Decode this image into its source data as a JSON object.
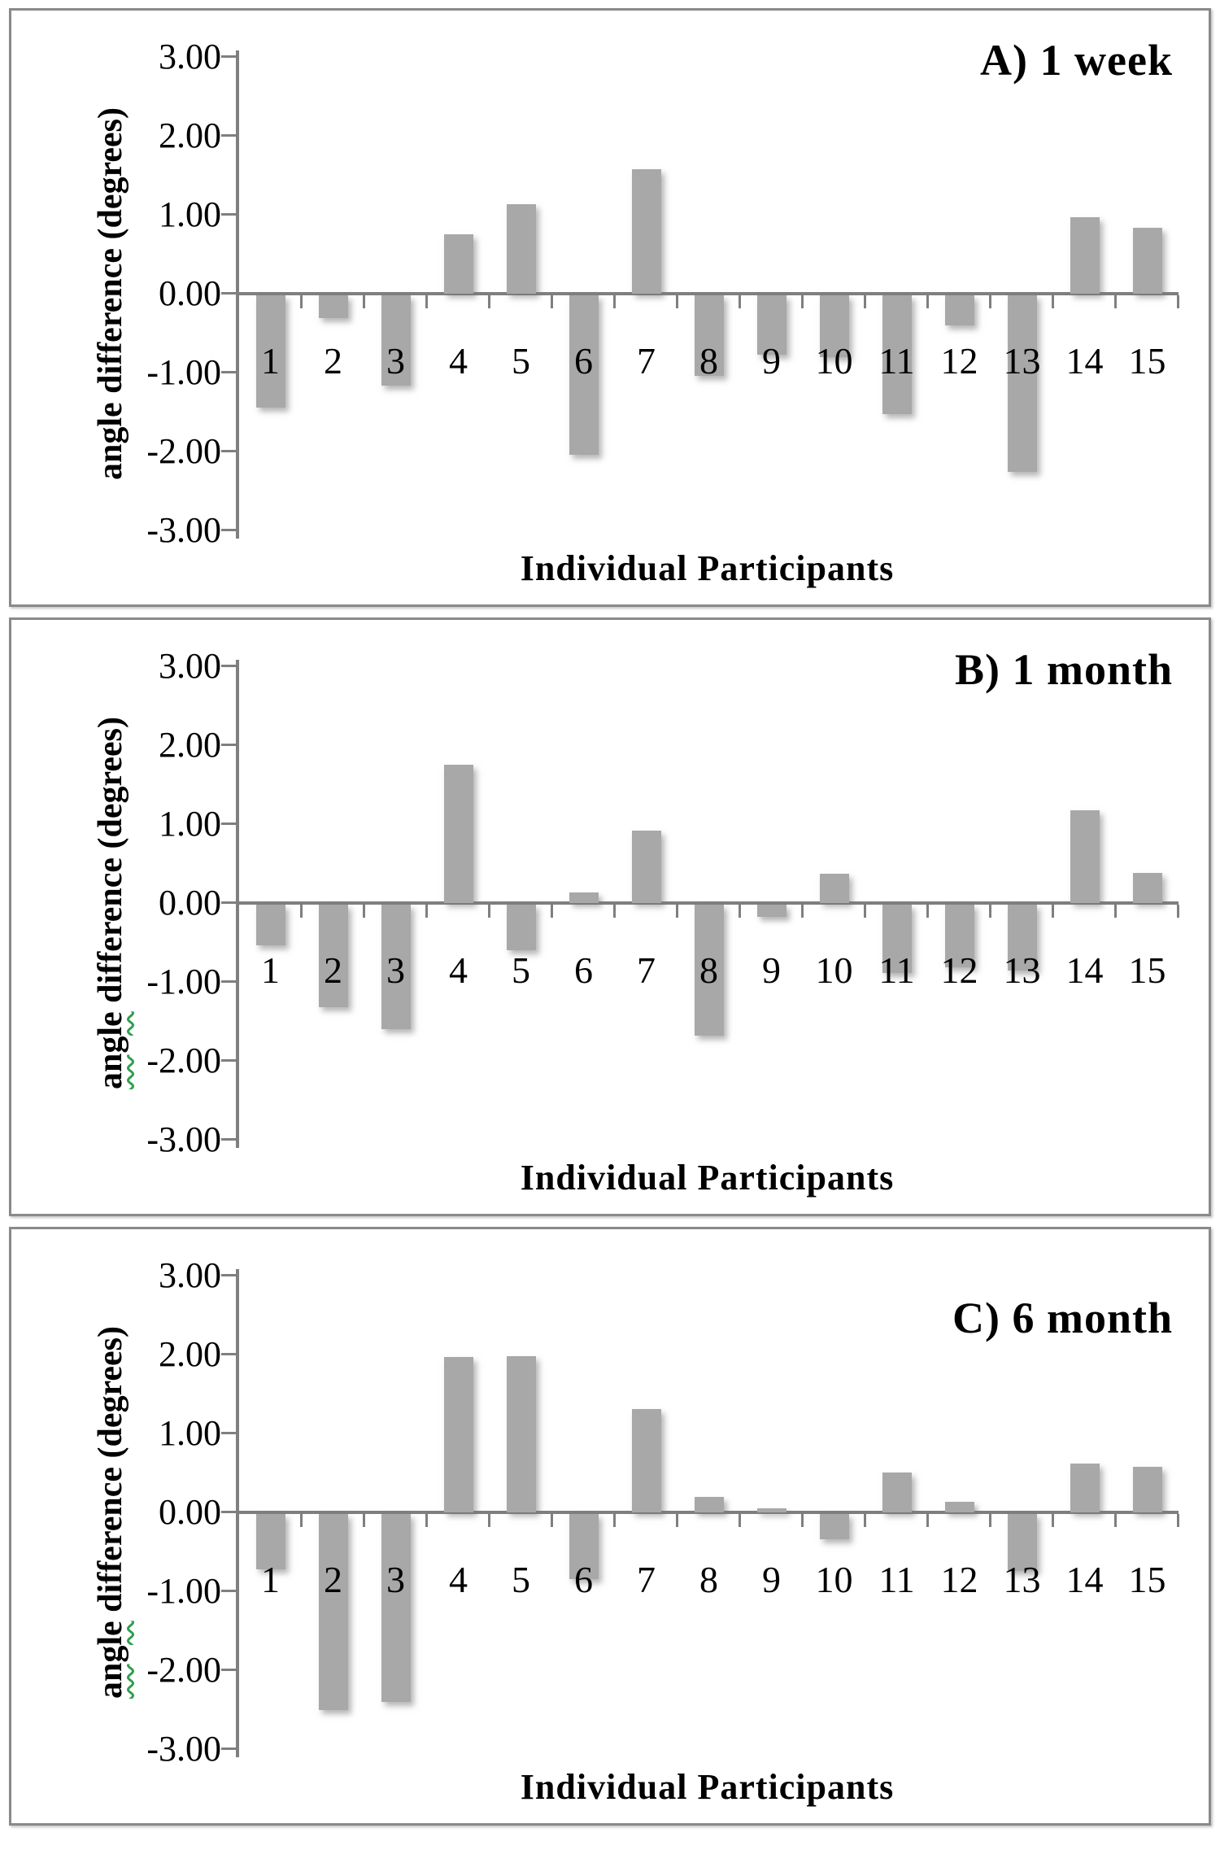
{
  "colors": {
    "bar": "#a8a8a8",
    "axis": "#7f7f7f",
    "panel_border": "#8a8a8a",
    "spellcheck_underline": "#2e9e4f"
  },
  "chart_data": [
    {
      "type": "bar",
      "title": "A) 1 week",
      "xlabel": "Individual Participants",
      "ylabel": "angle difference (degrees)",
      "ylabel_spellcheck_underline": false,
      "ylim": [
        -3.0,
        3.0
      ],
      "ytick_labels": [
        "3.00",
        "2.00",
        "1.00",
        "0.00",
        "-1.00",
        "-2.00",
        "-3.00"
      ],
      "grid": false,
      "legend": false,
      "categories": [
        "1",
        "2",
        "3",
        "4",
        "5",
        "6",
        "7",
        "8",
        "9",
        "10",
        "11",
        "12",
        "13",
        "14",
        "15"
      ],
      "values": [
        -1.42,
        -0.29,
        -1.14,
        0.75,
        1.13,
        -2.02,
        1.58,
        -1.02,
        -0.75,
        -0.78,
        -1.5,
        -0.38,
        -2.24,
        0.97,
        0.83
      ]
    },
    {
      "type": "bar",
      "title": "B) 1 month",
      "xlabel": "Individual Participants",
      "ylabel": "angle difference (degrees)",
      "ylabel_spellcheck_underline": true,
      "ylim": [
        -3.0,
        3.0
      ],
      "ytick_labels": [
        "3.00",
        "2.00",
        "1.00",
        "0.00",
        "-1.00",
        "-2.00",
        "-3.00"
      ],
      "grid": false,
      "legend": false,
      "categories": [
        "1",
        "2",
        "3",
        "4",
        "5",
        "6",
        "7",
        "8",
        "9",
        "10",
        "11",
        "12",
        "13",
        "14",
        "15"
      ],
      "values": [
        -0.52,
        -1.3,
        -1.58,
        1.75,
        -0.58,
        0.13,
        0.92,
        -1.66,
        -0.15,
        0.37,
        -0.87,
        -0.79,
        -0.83,
        1.18,
        0.38
      ]
    },
    {
      "type": "bar",
      "title": "C) 6 month",
      "xlabel": "Individual Participants",
      "ylabel": "angle difference (degrees)",
      "ylabel_spellcheck_underline": true,
      "ylim": [
        -3.0,
        3.0
      ],
      "ytick_labels": [
        "3.00",
        "2.00",
        "1.00",
        "0.00",
        "-1.00",
        "-2.00",
        "-3.00"
      ],
      "grid": false,
      "legend": false,
      "categories": [
        "1",
        "2",
        "3",
        "4",
        "5",
        "6",
        "7",
        "8",
        "9",
        "10",
        "11",
        "12",
        "13",
        "14",
        "15"
      ],
      "values": [
        -0.7,
        -2.48,
        -2.38,
        1.97,
        1.98,
        -0.82,
        1.31,
        0.2,
        0.05,
        -0.32,
        0.51,
        0.13,
        -0.72,
        0.62,
        0.58
      ]
    }
  ]
}
